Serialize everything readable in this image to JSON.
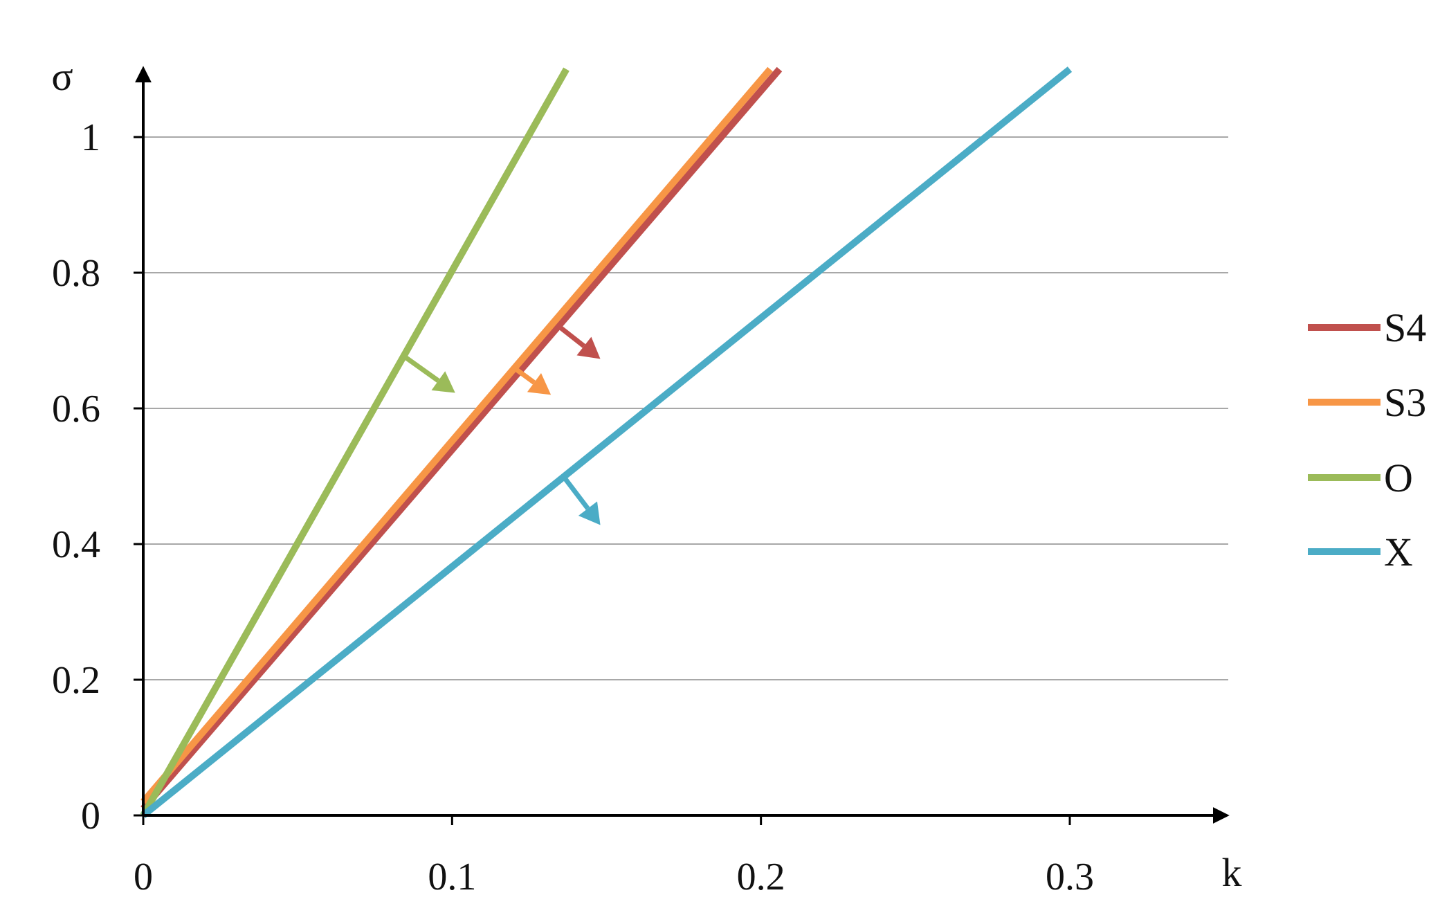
{
  "chart_data": {
    "type": "line",
    "xlabel": "k",
    "ylabel": "σ",
    "xlim": [
      0,
      0.35
    ],
    "ylim": [
      0,
      1.1
    ],
    "x_ticks": [
      0,
      0.1,
      0.2,
      0.3
    ],
    "x_tick_labels": [
      "0",
      "0.1",
      "0.2",
      "0.3"
    ],
    "y_ticks": [
      0,
      0.2,
      0.4,
      0.6,
      0.8,
      1.0
    ],
    "y_tick_labels": [
      "0",
      "0.2",
      "0.4",
      "0.6",
      "0.8",
      "1"
    ],
    "grid": "horizontal",
    "legend_position": "right",
    "series": [
      {
        "name": "S4",
        "color": "#c0504d",
        "x": [
          0,
          0.206
        ],
        "y": [
          0.01,
          1.1
        ],
        "arrow": {
          "x": 0.134,
          "y": 0.723,
          "dx": 0.014,
          "dy": -0.05
        }
      },
      {
        "name": "S3",
        "color": "#f79646",
        "x": [
          0,
          0.203
        ],
        "y": [
          0.02,
          1.1
        ],
        "arrow": {
          "x": 0.12,
          "y": 0.66,
          "dx": 0.012,
          "dy": -0.04
        }
      },
      {
        "name": "O",
        "color": "#9bbb59",
        "x": [
          0,
          0.137
        ],
        "y": [
          0,
          1.1
        ],
        "arrow": {
          "x": 0.085,
          "y": 0.675,
          "dx": 0.016,
          "dy": -0.052
        }
      },
      {
        "name": "X",
        "color": "#4bacc6",
        "x": [
          0,
          0.3
        ],
        "y": [
          0,
          1.1
        ],
        "arrow": {
          "x": 0.136,
          "y": 0.5,
          "dx": 0.012,
          "dy": -0.072
        }
      }
    ]
  }
}
